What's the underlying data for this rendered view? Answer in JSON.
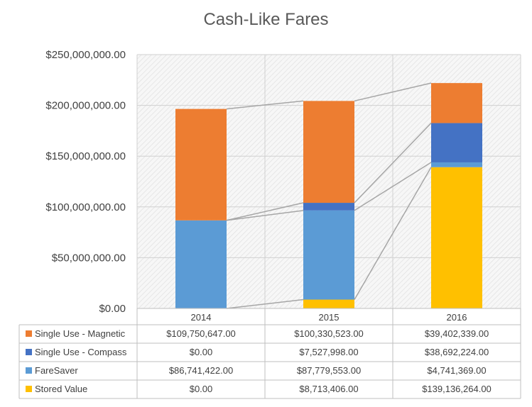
{
  "chart_data": {
    "type": "bar",
    "stacked": true,
    "title": "Cash-Like Fares",
    "categories": [
      "2014",
      "2015",
      "2016"
    ],
    "ylim": [
      0,
      250000000
    ],
    "yticks": [
      "$0.00",
      "$50,000,000.00",
      "$100,000,000.00",
      "$150,000,000.00",
      "$200,000,000.00",
      "$250,000,000.00"
    ],
    "grid": true,
    "series_lines": true,
    "legend": "data-table-below",
    "series": [
      {
        "name": "Stored Value",
        "color": "#FFC000",
        "values": [
          0,
          8713406,
          139136264
        ],
        "labels": [
          "$0.00",
          "$8,713,406.00",
          "$139,136,264.00"
        ]
      },
      {
        "name": "FareSaver",
        "color": "#5B9BD5",
        "values": [
          86741422,
          87779553,
          4741369
        ],
        "labels": [
          "$86,741,422.00",
          "$87,779,553.00",
          "$4,741,369.00"
        ]
      },
      {
        "name": "Single Use - Compass",
        "color": "#4472C4",
        "values": [
          0,
          7527998,
          38692224
        ],
        "labels": [
          "$0.00",
          "$7,527,998.00",
          "$38,692,224.00"
        ]
      },
      {
        "name": "Single Use - Magnetic",
        "color": "#ED7D31",
        "values": [
          109750647,
          100330523,
          39402339
        ],
        "labels": [
          "$109,750,647.00",
          "$100,330,523.00",
          "$39,402,339.00"
        ]
      }
    ],
    "table_order": [
      "Single Use - Magnetic",
      "Single Use - Compass",
      "FareSaver",
      "Stored Value"
    ]
  }
}
